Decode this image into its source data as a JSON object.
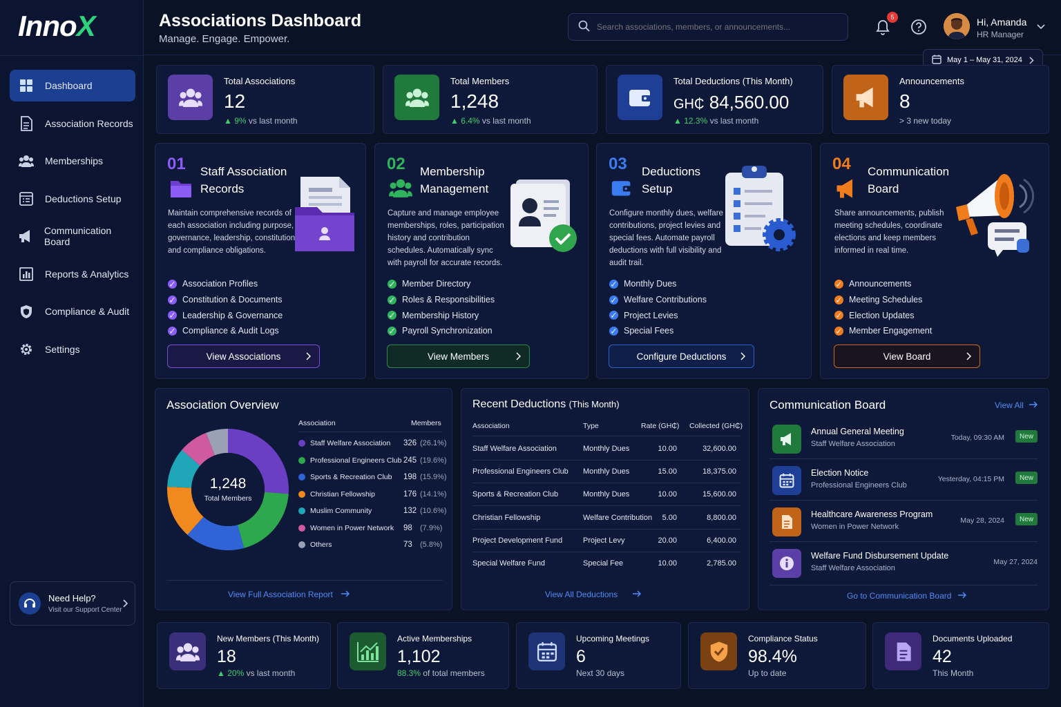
{
  "brand": {
    "logo_main": "Inno",
    "logo_x": "X"
  },
  "sidebar": {
    "items": [
      {
        "label": "Dashboard",
        "icon": "grid-icon"
      },
      {
        "label": "Association Records",
        "icon": "document-icon"
      },
      {
        "label": "Memberships",
        "icon": "users-icon"
      },
      {
        "label": "Deductions Setup",
        "icon": "calculator-icon"
      },
      {
        "label": "Communication Board",
        "icon": "megaphone-icon"
      },
      {
        "label": "Reports & Analytics",
        "icon": "chart-icon"
      },
      {
        "label": "Compliance & Audit",
        "icon": "shield-icon"
      },
      {
        "label": "Settings",
        "icon": "gear-icon"
      }
    ],
    "help": {
      "title": "Need Help?",
      "subtitle": "Visit our Support Center"
    }
  },
  "header": {
    "title": "Associations Dashboard",
    "subtitle": "Manage. Engage. Empower.",
    "search_placeholder": "Search associations, members, or announcements...",
    "notification_count": "5",
    "user_greeting": "Hi, Amanda",
    "user_role": "HR Manager",
    "date_range": "May 1 – May 31, 2024"
  },
  "stats": [
    {
      "label": "Total Associations",
      "value": "12",
      "change": "9%",
      "change_text": "vs last month",
      "color": "#5b3ea6"
    },
    {
      "label": "Total Members",
      "value": "1,248",
      "change": "6.4%",
      "change_text": "vs last month",
      "color": "#1f7a3c"
    },
    {
      "label": "Total Deductions (This Month)",
      "value_prefix": "GH₵",
      "value": "84,560.00",
      "change": "12.3%",
      "change_text": "vs last month",
      "color": "#1e3f95"
    },
    {
      "label": "Announcements",
      "value": "8",
      "change_text": "3 new today",
      "color": "#c2631a"
    }
  ],
  "features": [
    {
      "num": "01",
      "title_1": "Staff Association",
      "title_2": "Records",
      "desc": "Maintain comprehensive records of each association including purpose, governance, leadership, constitution and compliance obligations.",
      "items": [
        "Association Profiles",
        "Constitution & Documents",
        "Leadership & Governance",
        "Compliance & Audit Logs"
      ],
      "button": "View Associations",
      "accent": "#8b5cf6"
    },
    {
      "num": "02",
      "title_1": "Membership",
      "title_2": "Management",
      "desc": "Capture and manage employee memberships, roles, participation history and contribution schedules. Automatically sync with payroll for accurate records.",
      "items": [
        "Member Directory",
        "Roles & Responsibilities",
        "Membership History",
        "Payroll Synchronization"
      ],
      "button": "View Members",
      "accent": "#2fb35c"
    },
    {
      "num": "03",
      "title_1": "Deductions",
      "title_2": "Setup",
      "desc": "Configure monthly dues, welfare contributions, project levies and special fees. Automate payroll deductions with full visibility and audit trail.",
      "items": [
        "Monthly Dues",
        "Welfare Contributions",
        "Project Levies",
        "Special Fees"
      ],
      "button": "Configure Deductions",
      "accent": "#3b7bf0"
    },
    {
      "num": "04",
      "title_1": "Communication",
      "title_2": "Board",
      "desc": "Share announcements, publish meeting schedules, coordinate elections and keep members informed in real time.",
      "items": [
        "Announcements",
        "Meeting Schedules",
        "Election Updates",
        "Member Engagement"
      ],
      "button": "View Board",
      "accent": "#f07c1c"
    }
  ],
  "overview": {
    "title": "Association Overview",
    "col_association": "Association",
    "col_members": "Members",
    "center_value": "1,248",
    "center_label": "Total Members",
    "link": "View Full Association Report",
    "rows": [
      {
        "name": "Staff Welfare Association",
        "count": "326",
        "pct": "(26.1%)",
        "value": 326,
        "color": "#6a3fc4"
      },
      {
        "name": "Professional Engineers Club",
        "count": "245",
        "pct": "(19.6%)",
        "value": 245,
        "color": "#2ea84f"
      },
      {
        "name": "Sports & Recreation Club",
        "count": "198",
        "pct": "(15.9%)",
        "value": 198,
        "color": "#2f63d6"
      },
      {
        "name": "Christian Fellowship",
        "count": "176",
        "pct": "(14.1%)",
        "value": 176,
        "color": "#f0891e"
      },
      {
        "name": "Muslim Community",
        "count": "132",
        "pct": "(10.6%)",
        "value": 132,
        "color": "#1fa6b8"
      },
      {
        "name": "Women in Power Network",
        "count": "98",
        "pct": "(7.9%)",
        "value": 98,
        "color": "#cf5aa0"
      },
      {
        "name": "Others",
        "count": "73",
        "pct": "(5.8%)",
        "value": 73,
        "color": "#9aa1b5"
      }
    ]
  },
  "chart_data": {
    "type": "pie",
    "categories": [
      "Staff Welfare Association",
      "Professional Engineers Club",
      "Sports & Recreation Club",
      "Christian Fellowship",
      "Muslim Community",
      "Women in Power Network",
      "Others"
    ],
    "values": [
      326,
      245,
      198,
      176,
      132,
      98,
      73
    ],
    "title": "Association Overview"
  },
  "deductions": {
    "title": "Recent Deductions",
    "title_suffix": "(This Month)",
    "cols": [
      "Association",
      "Type",
      "Rate (GH₵)",
      "Collected (GH₵)"
    ],
    "rows": [
      [
        "Staff Welfare Association",
        "Monthly Dues",
        "10.00",
        "32,600.00"
      ],
      [
        "Professional Engineers Club",
        "Monthly Dues",
        "15.00",
        "18,375.00"
      ],
      [
        "Sports & Recreation Club",
        "Monthly Dues",
        "10.00",
        "15,600.00"
      ],
      [
        "Christian Fellowship",
        "Welfare Contribution",
        "5.00",
        "8,800.00"
      ],
      [
        "Project Development Fund",
        "Project Levy",
        "20.00",
        "6,400.00"
      ],
      [
        "Special Welfare Fund",
        "Special Fee",
        "10.00",
        "2,785.00"
      ]
    ],
    "link": "View All Deductions"
  },
  "comm": {
    "title": "Communication Board",
    "view_all": "View All",
    "items": [
      {
        "title": "Annual General Meeting",
        "sub": "Staff Welfare Association",
        "date": "Today, 09:30 AM",
        "badge": "New",
        "color": "#1f7a3c",
        "icon": "megaphone-icon"
      },
      {
        "title": "Election Notice",
        "sub": "Professional Engineers Club",
        "date": "Yesterday, 04:15 PM",
        "badge": "New",
        "color": "#1e3f95",
        "icon": "calendar-icon"
      },
      {
        "title": "Healthcare Awareness Program",
        "sub": "Women in Power Network",
        "date": "May 28, 2024",
        "badge": "New",
        "color": "#c2631a",
        "icon": "document-icon"
      },
      {
        "title": "Welfare Fund Disbursement Update",
        "sub": "Staff Welfare Association",
        "date": "May 27, 2024",
        "color": "#5b3ea6",
        "icon": "info-icon"
      }
    ],
    "link": "Go to Communication Board"
  },
  "bottom": [
    {
      "label": "New Members (This Month)",
      "value": "18",
      "change": "20%",
      "sub": "vs last month",
      "color": "#3a2f7a"
    },
    {
      "label": "Active Memberships",
      "value": "1,102",
      "change": "88.3%",
      "sub": "of total members",
      "color": "#1c5a30"
    },
    {
      "label": "Upcoming Meetings",
      "value": "6",
      "sub": "Next 30 days",
      "color": "#1e3476"
    },
    {
      "label": "Compliance Status",
      "value": "98.4%",
      "sub": "Up to date",
      "color": "#7a4212"
    },
    {
      "label": "Documents Uploaded",
      "value": "42",
      "sub": "This Month",
      "color": "#3e2a78"
    }
  ]
}
